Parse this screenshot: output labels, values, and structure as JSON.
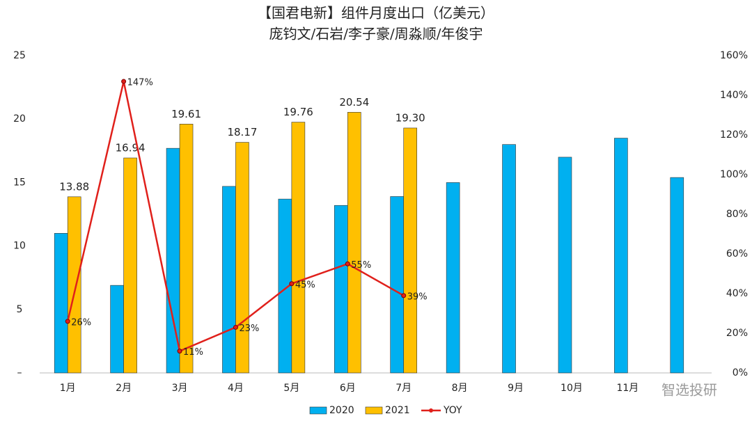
{
  "chart_data": {
    "type": "bar",
    "title": "【国君电新】组件月度出口（亿美元）",
    "subtitle": "庞钧文/石岩/李子豪/周淼顺/年俊宇",
    "watermark": "智选投研",
    "categories": [
      "1月",
      "2月",
      "3月",
      "4月",
      "5月",
      "6月",
      "7月",
      "8月",
      "9月",
      "10月",
      "11月",
      null
    ],
    "series": [
      {
        "name": "2020",
        "color": "#00b0f0",
        "values": [
          11.0,
          6.9,
          17.7,
          14.7,
          13.7,
          13.2,
          13.9,
          15.0,
          18.0,
          17.0,
          18.5,
          15.4
        ]
      },
      {
        "name": "2021",
        "color": "#ffc000",
        "values": [
          13.88,
          16.94,
          19.61,
          18.17,
          19.76,
          20.54,
          19.3,
          null,
          null,
          null,
          null,
          null
        ],
        "value_labels": [
          "13.88",
          "16.94",
          "19.61",
          "18.17",
          "19.76",
          "20.54",
          "19.30",
          null,
          null,
          null,
          null,
          null
        ]
      },
      {
        "name": "YOY",
        "color": "#e0201b",
        "type": "line",
        "axis": "y2",
        "values": [
          26,
          147,
          11,
          23,
          45,
          55,
          39,
          null,
          null,
          null,
          null,
          null
        ],
        "value_labels": [
          "26%",
          "147%",
          "11%",
          "23%",
          "45%",
          "55%",
          "39%",
          null,
          null,
          null,
          null,
          null
        ]
      }
    ],
    "ylim": [
      0,
      25
    ],
    "yticks": [
      {
        "value": 0,
        "label": "–"
      },
      5,
      10,
      15,
      20,
      25
    ],
    "y2lim": [
      0,
      160
    ],
    "y2ticks": [
      {
        "value": 0,
        "label": "0%"
      },
      {
        "value": 20,
        "label": "20%"
      },
      {
        "value": 40,
        "label": "40%"
      },
      {
        "value": 60,
        "label": "60%"
      },
      {
        "value": 80,
        "label": "80%"
      },
      {
        "value": 100,
        "label": "100%"
      },
      {
        "value": 120,
        "label": "120%"
      },
      {
        "value": 140,
        "label": "140%"
      },
      {
        "value": 160,
        "label": "160%"
      }
    ],
    "grid": false,
    "legend": "bottom"
  }
}
